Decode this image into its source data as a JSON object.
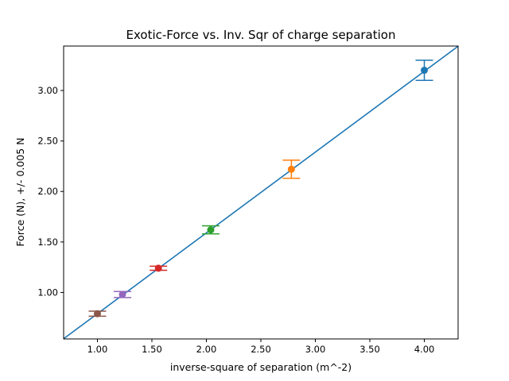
{
  "chart_data": {
    "type": "scatter",
    "title": "Exotic-Force vs. Inv. Sqr of charge separation",
    "xlabel": "inverse-square of separation (m^-2)",
    "ylabel": "Force (N), +/- 0.005 N",
    "xlim": [
      0.69,
      4.31
    ],
    "ylim": [
      0.54,
      3.44
    ],
    "xticks": [
      "1.00",
      "1.50",
      "2.00",
      "2.50",
      "3.00",
      "3.50",
      "4.00"
    ],
    "yticks": [
      "1.00",
      "1.50",
      "2.00",
      "2.50",
      "3.00"
    ],
    "grid": false,
    "points": [
      {
        "x": 4.0,
        "y": 3.2,
        "yerr": 0.1,
        "color": "#1f77b4"
      },
      {
        "x": 2.78,
        "y": 2.22,
        "yerr": 0.09,
        "color": "#ff7f0e"
      },
      {
        "x": 2.04,
        "y": 1.62,
        "yerr": 0.04,
        "color": "#2ca02c"
      },
      {
        "x": 1.56,
        "y": 1.24,
        "yerr": 0.02,
        "color": "#d62728"
      },
      {
        "x": 1.23,
        "y": 0.98,
        "yerr": 0.03,
        "color": "#9467bd"
      },
      {
        "x": 1.0,
        "y": 0.79,
        "yerr": 0.025,
        "color": "#8c564b"
      }
    ],
    "fit_line": {
      "slope": 0.8,
      "intercept": -0.01,
      "color": "#1f77b4"
    }
  }
}
